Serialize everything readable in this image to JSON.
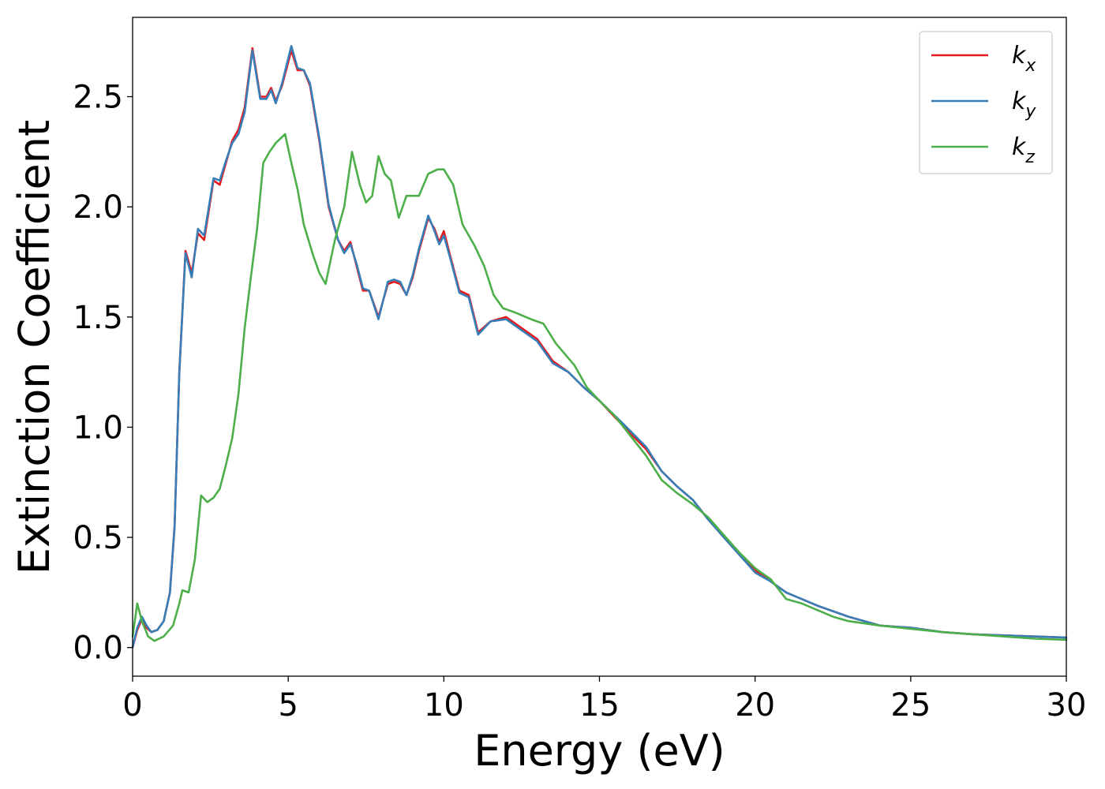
{
  "chart_data": {
    "type": "line",
    "title": "",
    "xlabel": "Energy (eV)",
    "ylabel": "Extinction Coefficient",
    "xlim": [
      0,
      30
    ],
    "ylim": [
      -0.13,
      2.86
    ],
    "xticks": [
      0,
      5,
      10,
      15,
      20,
      25,
      30
    ],
    "xtick_labels": [
      "0",
      "5",
      "10",
      "15",
      "20",
      "25",
      "30"
    ],
    "yticks": [
      0.0,
      0.5,
      1.0,
      1.5,
      2.0,
      2.5
    ],
    "ytick_labels": [
      "0.0",
      "0.5",
      "1.0",
      "1.5",
      "2.0",
      "2.5"
    ],
    "grid": false,
    "legend_position": "top-right",
    "series": [
      {
        "name": "k_x",
        "legend_base": "k",
        "legend_sub": "x",
        "color": "#e41a1c",
        "points": [
          [
            0,
            0
          ],
          [
            0.15,
            0.08
          ],
          [
            0.3,
            0.13
          ],
          [
            0.45,
            0.09
          ],
          [
            0.6,
            0.07
          ],
          [
            0.8,
            0.08
          ],
          [
            1.0,
            0.12
          ],
          [
            1.2,
            0.25
          ],
          [
            1.35,
            0.55
          ],
          [
            1.5,
            1.25
          ],
          [
            1.7,
            1.8
          ],
          [
            1.9,
            1.7
          ],
          [
            2.1,
            1.88
          ],
          [
            2.3,
            1.85
          ],
          [
            2.6,
            2.12
          ],
          [
            2.8,
            2.1
          ],
          [
            3.0,
            2.2
          ],
          [
            3.2,
            2.3
          ],
          [
            3.4,
            2.35
          ],
          [
            3.6,
            2.45
          ],
          [
            3.85,
            2.72
          ],
          [
            4.1,
            2.5
          ],
          [
            4.3,
            2.5
          ],
          [
            4.45,
            2.54
          ],
          [
            4.6,
            2.48
          ],
          [
            4.8,
            2.55
          ],
          [
            5.1,
            2.71
          ],
          [
            5.3,
            2.62
          ],
          [
            5.5,
            2.62
          ],
          [
            5.7,
            2.55
          ],
          [
            6.0,
            2.3
          ],
          [
            6.3,
            2.0
          ],
          [
            6.6,
            1.85
          ],
          [
            6.8,
            1.8
          ],
          [
            7.0,
            1.84
          ],
          [
            7.2,
            1.73
          ],
          [
            7.4,
            1.62
          ],
          [
            7.6,
            1.62
          ],
          [
            7.9,
            1.5
          ],
          [
            8.2,
            1.65
          ],
          [
            8.4,
            1.66
          ],
          [
            8.6,
            1.65
          ],
          [
            8.8,
            1.6
          ],
          [
            9.0,
            1.68
          ],
          [
            9.2,
            1.8
          ],
          [
            9.5,
            1.95
          ],
          [
            9.7,
            1.9
          ],
          [
            9.85,
            1.84
          ],
          [
            10.0,
            1.89
          ],
          [
            10.2,
            1.78
          ],
          [
            10.5,
            1.62
          ],
          [
            10.8,
            1.6
          ],
          [
            11.1,
            1.43
          ],
          [
            11.5,
            1.48
          ],
          [
            12.0,
            1.5
          ],
          [
            12.5,
            1.45
          ],
          [
            13.0,
            1.4
          ],
          [
            13.5,
            1.3
          ],
          [
            14.0,
            1.25
          ],
          [
            14.5,
            1.18
          ],
          [
            15.0,
            1.12
          ],
          [
            15.8,
            1.0
          ],
          [
            16.5,
            0.9
          ],
          [
            17.0,
            0.8
          ],
          [
            17.5,
            0.73
          ],
          [
            18.0,
            0.67
          ],
          [
            18.5,
            0.58
          ],
          [
            19.0,
            0.5
          ],
          [
            19.5,
            0.42
          ],
          [
            20.0,
            0.35
          ],
          [
            20.5,
            0.3
          ],
          [
            21.0,
            0.25
          ],
          [
            22.0,
            0.19
          ],
          [
            23.0,
            0.14
          ],
          [
            24.0,
            0.1
          ],
          [
            25.0,
            0.09
          ],
          [
            26.0,
            0.07
          ],
          [
            27.0,
            0.06
          ],
          [
            28.0,
            0.055
          ],
          [
            29.0,
            0.05
          ],
          [
            30.0,
            0.045
          ]
        ]
      },
      {
        "name": "k_y",
        "legend_base": "k",
        "legend_sub": "y",
        "color": "#377eb8",
        "points": [
          [
            0,
            0
          ],
          [
            0.15,
            0.09
          ],
          [
            0.3,
            0.14
          ],
          [
            0.45,
            0.1
          ],
          [
            0.6,
            0.07
          ],
          [
            0.8,
            0.08
          ],
          [
            1.0,
            0.12
          ],
          [
            1.2,
            0.25
          ],
          [
            1.35,
            0.55
          ],
          [
            1.5,
            1.25
          ],
          [
            1.7,
            1.79
          ],
          [
            1.9,
            1.68
          ],
          [
            2.1,
            1.9
          ],
          [
            2.3,
            1.87
          ],
          [
            2.6,
            2.13
          ],
          [
            2.8,
            2.12
          ],
          [
            3.0,
            2.21
          ],
          [
            3.2,
            2.29
          ],
          [
            3.4,
            2.33
          ],
          [
            3.6,
            2.43
          ],
          [
            3.85,
            2.71
          ],
          [
            4.1,
            2.49
          ],
          [
            4.3,
            2.49
          ],
          [
            4.45,
            2.53
          ],
          [
            4.6,
            2.47
          ],
          [
            4.8,
            2.56
          ],
          [
            5.1,
            2.73
          ],
          [
            5.3,
            2.63
          ],
          [
            5.5,
            2.62
          ],
          [
            5.7,
            2.56
          ],
          [
            6.0,
            2.31
          ],
          [
            6.3,
            2.01
          ],
          [
            6.6,
            1.85
          ],
          [
            6.8,
            1.79
          ],
          [
            7.0,
            1.83
          ],
          [
            7.2,
            1.74
          ],
          [
            7.4,
            1.63
          ],
          [
            7.6,
            1.62
          ],
          [
            7.9,
            1.49
          ],
          [
            8.2,
            1.66
          ],
          [
            8.4,
            1.67
          ],
          [
            8.6,
            1.66
          ],
          [
            8.8,
            1.6
          ],
          [
            9.0,
            1.69
          ],
          [
            9.2,
            1.81
          ],
          [
            9.5,
            1.96
          ],
          [
            9.7,
            1.89
          ],
          [
            9.85,
            1.83
          ],
          [
            10.0,
            1.87
          ],
          [
            10.2,
            1.77
          ],
          [
            10.5,
            1.61
          ],
          [
            10.8,
            1.59
          ],
          [
            11.1,
            1.42
          ],
          [
            11.5,
            1.48
          ],
          [
            12.0,
            1.49
          ],
          [
            12.5,
            1.44
          ],
          [
            13.0,
            1.39
          ],
          [
            13.5,
            1.29
          ],
          [
            14.0,
            1.25
          ],
          [
            14.5,
            1.18
          ],
          [
            15.0,
            1.12
          ],
          [
            15.8,
            1.01
          ],
          [
            16.5,
            0.91
          ],
          [
            17.0,
            0.8
          ],
          [
            17.5,
            0.73
          ],
          [
            18.0,
            0.67
          ],
          [
            18.5,
            0.58
          ],
          [
            19.0,
            0.5
          ],
          [
            19.5,
            0.42
          ],
          [
            20.0,
            0.34
          ],
          [
            20.5,
            0.3
          ],
          [
            21.0,
            0.25
          ],
          [
            22.0,
            0.19
          ],
          [
            23.0,
            0.14
          ],
          [
            24.0,
            0.1
          ],
          [
            25.0,
            0.09
          ],
          [
            26.0,
            0.07
          ],
          [
            27.0,
            0.06
          ],
          [
            28.0,
            0.055
          ],
          [
            29.0,
            0.05
          ],
          [
            30.0,
            0.045
          ]
        ]
      },
      {
        "name": "k_z",
        "legend_base": "k",
        "legend_sub": "z",
        "color": "#4daf4a",
        "points": [
          [
            0,
            0.05
          ],
          [
            0.15,
            0.2
          ],
          [
            0.3,
            0.12
          ],
          [
            0.5,
            0.05
          ],
          [
            0.7,
            0.03
          ],
          [
            1.0,
            0.05
          ],
          [
            1.3,
            0.1
          ],
          [
            1.5,
            0.2
          ],
          [
            1.6,
            0.26
          ],
          [
            1.8,
            0.25
          ],
          [
            2.0,
            0.4
          ],
          [
            2.2,
            0.69
          ],
          [
            2.4,
            0.66
          ],
          [
            2.6,
            0.68
          ],
          [
            2.8,
            0.72
          ],
          [
            3.0,
            0.83
          ],
          [
            3.2,
            0.95
          ],
          [
            3.4,
            1.15
          ],
          [
            3.6,
            1.45
          ],
          [
            3.8,
            1.68
          ],
          [
            4.0,
            1.9
          ],
          [
            4.2,
            2.2
          ],
          [
            4.4,
            2.25
          ],
          [
            4.6,
            2.29
          ],
          [
            4.9,
            2.33
          ],
          [
            5.1,
            2.2
          ],
          [
            5.3,
            2.08
          ],
          [
            5.5,
            1.92
          ],
          [
            5.8,
            1.78
          ],
          [
            6.0,
            1.7
          ],
          [
            6.2,
            1.65
          ],
          [
            6.5,
            1.85
          ],
          [
            6.8,
            2.0
          ],
          [
            7.05,
            2.25
          ],
          [
            7.3,
            2.1
          ],
          [
            7.5,
            2.02
          ],
          [
            7.7,
            2.05
          ],
          [
            7.9,
            2.23
          ],
          [
            8.1,
            2.15
          ],
          [
            8.3,
            2.12
          ],
          [
            8.55,
            1.95
          ],
          [
            8.8,
            2.05
          ],
          [
            9.2,
            2.05
          ],
          [
            9.5,
            2.15
          ],
          [
            9.8,
            2.17
          ],
          [
            10.0,
            2.17
          ],
          [
            10.3,
            2.1
          ],
          [
            10.6,
            1.92
          ],
          [
            11.0,
            1.82
          ],
          [
            11.3,
            1.73
          ],
          [
            11.6,
            1.6
          ],
          [
            11.9,
            1.54
          ],
          [
            12.3,
            1.52
          ],
          [
            12.8,
            1.49
          ],
          [
            13.2,
            1.47
          ],
          [
            13.6,
            1.38
          ],
          [
            14.2,
            1.28
          ],
          [
            14.6,
            1.18
          ],
          [
            15.0,
            1.12
          ],
          [
            15.5,
            1.05
          ],
          [
            16.0,
            0.96
          ],
          [
            16.5,
            0.87
          ],
          [
            17.0,
            0.76
          ],
          [
            17.5,
            0.7
          ],
          [
            18.0,
            0.65
          ],
          [
            18.5,
            0.59
          ],
          [
            19.0,
            0.51
          ],
          [
            19.5,
            0.43
          ],
          [
            20.0,
            0.36
          ],
          [
            20.5,
            0.31
          ],
          [
            21.0,
            0.22
          ],
          [
            21.5,
            0.2
          ],
          [
            22.0,
            0.17
          ],
          [
            22.5,
            0.14
          ],
          [
            23.0,
            0.12
          ],
          [
            24.0,
            0.1
          ],
          [
            25.0,
            0.085
          ],
          [
            26.0,
            0.07
          ],
          [
            27.0,
            0.06
          ],
          [
            28.0,
            0.05
          ],
          [
            29.0,
            0.04
          ],
          [
            30.0,
            0.035
          ]
        ]
      }
    ]
  }
}
